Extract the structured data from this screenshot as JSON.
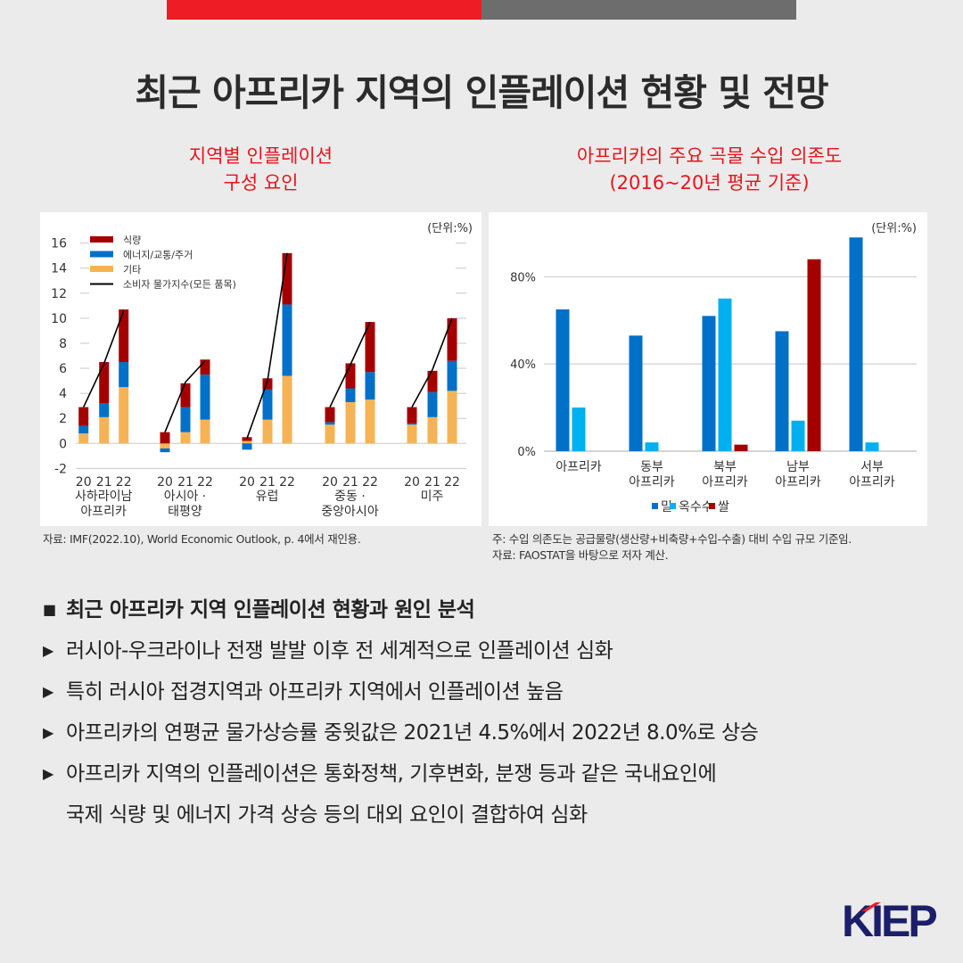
{
  "title": "최근 아프리카 지역의 인플레이션 현황 및 전망",
  "chart_data": [
    {
      "type": "bar",
      "stacked": true,
      "title": "지역별 인플레이션\n구성 요인",
      "title_lines": [
        "지역별 인플레이션",
        "구성 요인"
      ],
      "unit": "(단위:%)",
      "ylim": [
        -2,
        16
      ],
      "yticks": [
        -2,
        0,
        2,
        4,
        6,
        8,
        10,
        12,
        14,
        16
      ],
      "groups": [
        {
          "label": [
            "사하라이남",
            "아프리카"
          ]
        },
        {
          "label": [
            "아시아 ·",
            "태평양"
          ]
        },
        {
          "label": [
            "유럽"
          ]
        },
        {
          "label": [
            "중동 ·",
            "중앙아시아"
          ]
        },
        {
          "label": [
            "미주"
          ]
        }
      ],
      "years": [
        "20",
        "21",
        "22"
      ],
      "legend": [
        "식량",
        "에너지/교통/주거",
        "기타",
        "소비자 물가지수(모든 품목)"
      ],
      "colors": {
        "food": "#a50000",
        "energy": "#0070c8",
        "other": "#f6b355",
        "cpi": "#000000"
      },
      "series": [
        {
          "name": "기타",
          "values": [
            [
              0.8,
              2.1,
              4.5
            ],
            [
              -0.4,
              0.9,
              1.9
            ],
            [
              0.2,
              1.9,
              5.4
            ],
            [
              1.5,
              3.3,
              3.5
            ],
            [
              1.5,
              2.1,
              4.2
            ]
          ]
        },
        {
          "name": "에너지/교통/주거",
          "values": [
            [
              0.6,
              1.1,
              2.0
            ],
            [
              -0.3,
              2.0,
              3.6
            ],
            [
              -0.5,
              2.4,
              5.7
            ],
            [
              0.2,
              1.1,
              2.2
            ],
            [
              0.1,
              2.0,
              2.4
            ]
          ]
        },
        {
          "name": "식량",
          "values": [
            [
              1.5,
              3.3,
              4.2
            ],
            [
              0.9,
              1.9,
              1.2
            ],
            [
              0.3,
              0.9,
              4.1
            ],
            [
              1.2,
              2.0,
              4.0
            ],
            [
              1.3,
              1.7,
              3.4
            ]
          ]
        },
        {
          "name": "소비자 물가지수(모든 품목)",
          "values": [
            [
              2.9,
              6.4,
              10.6
            ],
            [
              0.9,
              4.9,
              6.6
            ],
            [
              0.4,
              5.0,
              15.2
            ],
            [
              2.9,
              6.3,
              9.7
            ],
            [
              2.9,
              5.9,
              10.0
            ]
          ]
        }
      ],
      "source": "자료: IMF(2022.10), World Economic Outlook, p. 4에서 재인용."
    },
    {
      "type": "bar",
      "title_lines": [
        "아프리카의 주요 곡물 수입 의존도",
        "(2016~20년 평균 기준)"
      ],
      "unit": "(단위:%)",
      "ylim": [
        0,
        100
      ],
      "yticks": [
        "0%",
        "40%",
        "80%"
      ],
      "categories": [
        [
          "아프리카"
        ],
        [
          "동부",
          "아프리카"
        ],
        [
          "북부",
          "아프리카"
        ],
        [
          "남부",
          "아프리카"
        ],
        [
          "서부",
          "아프리카"
        ]
      ],
      "series": [
        {
          "name": "밀",
          "color": "#0070c8",
          "values": [
            65,
            53,
            62,
            55,
            98
          ]
        },
        {
          "name": "옥수수",
          "color": "#00b0f0",
          "values": [
            20,
            4,
            70,
            14,
            4
          ]
        },
        {
          "name": "쌀",
          "color": "#a50000",
          "values": [
            null,
            null,
            3,
            88,
            null
          ]
        }
      ],
      "notes": [
        "주: 수입 의존도는 공급물량(생산량+비축량+수입-수출) 대비 수입 규모 기준임.",
        "자료: FAOSTAT을 바탕으로 저자 계산."
      ]
    }
  ],
  "bullets": {
    "heading": "최근 아프리카 지역 인플레이션 현황과 원인 분석",
    "items": [
      "러시아-우크라이나 전쟁 발발 이후 전 세계적으로 인플레이션 심화",
      "특히 러시아 접경지역과 아프리카 지역에서 인플레이션 높음",
      "아프리카의 연평균 물가상승률 중윗값은 2021년 4.5%에서 2022년 8.0%로 상승",
      "아프리카 지역의 인플레이션은 통화정책, 기후변화, 분쟁 등과 같은 국내요인에",
      "국제 식량 및 에너지 가격 상승 등의 대외 요인이 결합하여 심화"
    ]
  },
  "logo": "KIEP"
}
